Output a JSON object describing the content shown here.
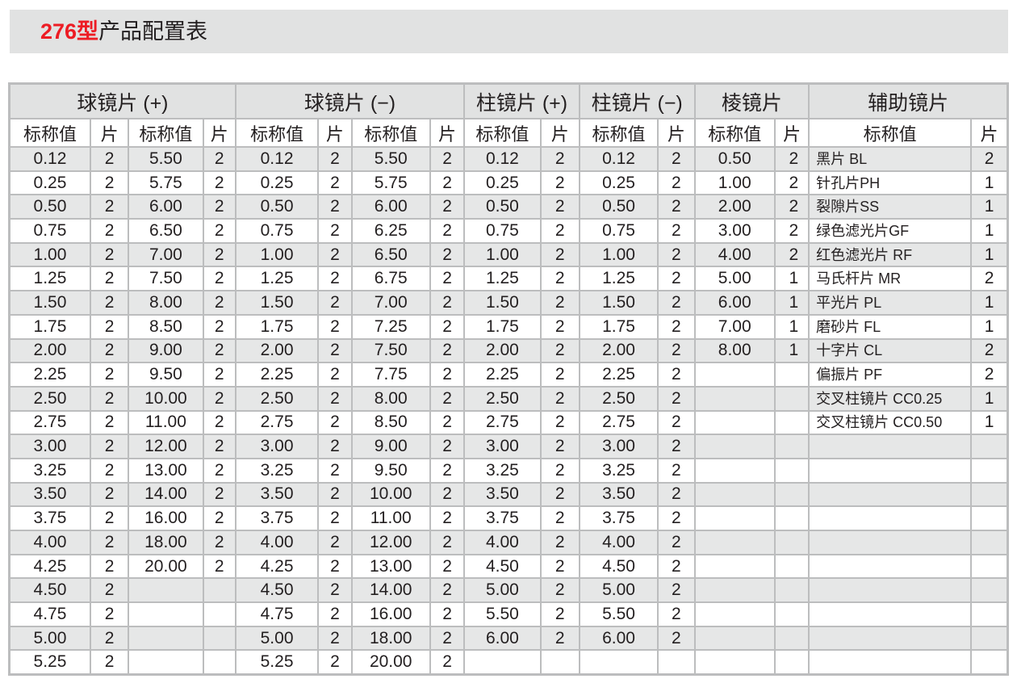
{
  "title": {
    "model": "276型",
    "text": "产品配置表"
  },
  "groups": [
    {
      "label": "球镜片 (+)"
    },
    {
      "label": "球镜片 (−)"
    },
    {
      "label": "柱镜片 (+)"
    },
    {
      "label": "柱镜片 (−)"
    },
    {
      "label": "棱镜片"
    },
    {
      "label": "辅助镜片"
    }
  ],
  "sub_headers": {
    "value": "标称值",
    "count": "片"
  },
  "columns": {
    "sph_plus_1": [
      [
        "0.12",
        "2"
      ],
      [
        "0.25",
        "2"
      ],
      [
        "0.50",
        "2"
      ],
      [
        "0.75",
        "2"
      ],
      [
        "1.00",
        "2"
      ],
      [
        "1.25",
        "2"
      ],
      [
        "1.50",
        "2"
      ],
      [
        "1.75",
        "2"
      ],
      [
        "2.00",
        "2"
      ],
      [
        "2.25",
        "2"
      ],
      [
        "2.50",
        "2"
      ],
      [
        "2.75",
        "2"
      ],
      [
        "3.00",
        "2"
      ],
      [
        "3.25",
        "2"
      ],
      [
        "3.50",
        "2"
      ],
      [
        "3.75",
        "2"
      ],
      [
        "4.00",
        "2"
      ],
      [
        "4.25",
        "2"
      ],
      [
        "4.50",
        "2"
      ],
      [
        "4.75",
        "2"
      ],
      [
        "5.00",
        "2"
      ],
      [
        "5.25",
        "2"
      ]
    ],
    "sph_plus_2": [
      [
        "5.50",
        "2"
      ],
      [
        "5.75",
        "2"
      ],
      [
        "6.00",
        "2"
      ],
      [
        "6.50",
        "2"
      ],
      [
        "7.00",
        "2"
      ],
      [
        "7.50",
        "2"
      ],
      [
        "8.00",
        "2"
      ],
      [
        "8.50",
        "2"
      ],
      [
        "9.00",
        "2"
      ],
      [
        "9.50",
        "2"
      ],
      [
        "10.00",
        "2"
      ],
      [
        "11.00",
        "2"
      ],
      [
        "12.00",
        "2"
      ],
      [
        "13.00",
        "2"
      ],
      [
        "14.00",
        "2"
      ],
      [
        "16.00",
        "2"
      ],
      [
        "18.00",
        "2"
      ],
      [
        "20.00",
        "2"
      ]
    ],
    "sph_minus_1": [
      [
        "0.12",
        "2"
      ],
      [
        "0.25",
        "2"
      ],
      [
        "0.50",
        "2"
      ],
      [
        "0.75",
        "2"
      ],
      [
        "1.00",
        "2"
      ],
      [
        "1.25",
        "2"
      ],
      [
        "1.50",
        "2"
      ],
      [
        "1.75",
        "2"
      ],
      [
        "2.00",
        "2"
      ],
      [
        "2.25",
        "2"
      ],
      [
        "2.50",
        "2"
      ],
      [
        "2.75",
        "2"
      ],
      [
        "3.00",
        "2"
      ],
      [
        "3.25",
        "2"
      ],
      [
        "3.50",
        "2"
      ],
      [
        "3.75",
        "2"
      ],
      [
        "4.00",
        "2"
      ],
      [
        "4.25",
        "2"
      ],
      [
        "4.50",
        "2"
      ],
      [
        "4.75",
        "2"
      ],
      [
        "5.00",
        "2"
      ],
      [
        "5.25",
        "2"
      ]
    ],
    "sph_minus_2": [
      [
        "5.50",
        "2"
      ],
      [
        "5.75",
        "2"
      ],
      [
        "6.00",
        "2"
      ],
      [
        "6.25",
        "2"
      ],
      [
        "6.50",
        "2"
      ],
      [
        "6.75",
        "2"
      ],
      [
        "7.00",
        "2"
      ],
      [
        "7.25",
        "2"
      ],
      [
        "7.50",
        "2"
      ],
      [
        "7.75",
        "2"
      ],
      [
        "8.00",
        "2"
      ],
      [
        "8.50",
        "2"
      ],
      [
        "9.00",
        "2"
      ],
      [
        "9.50",
        "2"
      ],
      [
        "10.00",
        "2"
      ],
      [
        "11.00",
        "2"
      ],
      [
        "12.00",
        "2"
      ],
      [
        "13.00",
        "2"
      ],
      [
        "14.00",
        "2"
      ],
      [
        "16.00",
        "2"
      ],
      [
        "18.00",
        "2"
      ],
      [
        "20.00",
        "2"
      ]
    ],
    "cyl_plus": [
      [
        "0.12",
        "2"
      ],
      [
        "0.25",
        "2"
      ],
      [
        "0.50",
        "2"
      ],
      [
        "0.75",
        "2"
      ],
      [
        "1.00",
        "2"
      ],
      [
        "1.25",
        "2"
      ],
      [
        "1.50",
        "2"
      ],
      [
        "1.75",
        "2"
      ],
      [
        "2.00",
        "2"
      ],
      [
        "2.25",
        "2"
      ],
      [
        "2.50",
        "2"
      ],
      [
        "2.75",
        "2"
      ],
      [
        "3.00",
        "2"
      ],
      [
        "3.25",
        "2"
      ],
      [
        "3.50",
        "2"
      ],
      [
        "3.75",
        "2"
      ],
      [
        "4.00",
        "2"
      ],
      [
        "4.50",
        "2"
      ],
      [
        "5.00",
        "2"
      ],
      [
        "5.50",
        "2"
      ],
      [
        "6.00",
        "2"
      ]
    ],
    "cyl_minus": [
      [
        "0.12",
        "2"
      ],
      [
        "0.25",
        "2"
      ],
      [
        "0.50",
        "2"
      ],
      [
        "0.75",
        "2"
      ],
      [
        "1.00",
        "2"
      ],
      [
        "1.25",
        "2"
      ],
      [
        "1.50",
        "2"
      ],
      [
        "1.75",
        "2"
      ],
      [
        "2.00",
        "2"
      ],
      [
        "2.25",
        "2"
      ],
      [
        "2.50",
        "2"
      ],
      [
        "2.75",
        "2"
      ],
      [
        "3.00",
        "2"
      ],
      [
        "3.25",
        "2"
      ],
      [
        "3.50",
        "2"
      ],
      [
        "3.75",
        "2"
      ],
      [
        "4.00",
        "2"
      ],
      [
        "4.50",
        "2"
      ],
      [
        "5.00",
        "2"
      ],
      [
        "5.50",
        "2"
      ],
      [
        "6.00",
        "2"
      ]
    ],
    "prism": [
      [
        "0.50",
        "2"
      ],
      [
        "1.00",
        "2"
      ],
      [
        "2.00",
        "2"
      ],
      [
        "3.00",
        "2"
      ],
      [
        "4.00",
        "2"
      ],
      [
        "5.00",
        "1"
      ],
      [
        "6.00",
        "1"
      ],
      [
        "7.00",
        "1"
      ],
      [
        "8.00",
        "1"
      ]
    ],
    "aux": [
      [
        "黑片 BL",
        "2"
      ],
      [
        "针孔片PH",
        "1"
      ],
      [
        "裂隙片SS",
        "1"
      ],
      [
        "绿色滤光片GF",
        "1"
      ],
      [
        "红色滤光片 RF",
        "1"
      ],
      [
        "马氏杆片 MR",
        "2"
      ],
      [
        "平光片 PL",
        "1"
      ],
      [
        "磨砂片 FL",
        "1"
      ],
      [
        "十字片 CL",
        "2"
      ],
      [
        "偏振片 PF",
        "2"
      ],
      [
        "交叉柱镜片 CC0.25",
        "1"
      ],
      [
        "交叉柱镜片 CC0.50",
        "1"
      ]
    ]
  },
  "colors": {
    "model": "#ed1c24",
    "row_alt": "#e6e7e7",
    "border": "#bcbdbe",
    "header_bg": "#e1e2e2"
  }
}
